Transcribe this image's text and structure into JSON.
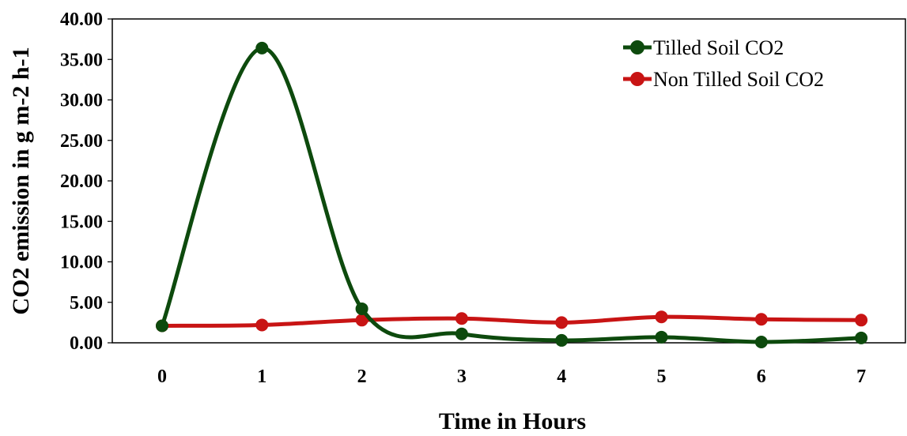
{
  "chart_data": {
    "type": "line",
    "title": "",
    "xlabel": "Time in Hours",
    "ylabel": "CO2 emission in g m-2 h-1",
    "categories": [
      "0",
      "1",
      "2",
      "3",
      "4",
      "5",
      "6",
      "7"
    ],
    "ylim": [
      0,
      40
    ],
    "yticks": [
      "0.00",
      "5.00",
      "10.00",
      "15.00",
      "20.00",
      "25.00",
      "30.00",
      "35.00",
      "40.00"
    ],
    "smooth": true,
    "grid": false,
    "legend_position": "top-right",
    "series": [
      {
        "name": "Tilled Soil CO2",
        "color": "#0d4a0d",
        "values": [
          2.1,
          36.4,
          4.2,
          1.1,
          0.3,
          0.7,
          0.1,
          0.6
        ]
      },
      {
        "name": "Non Tilled Soil CO2",
        "color": "#c81414",
        "values": [
          2.1,
          2.2,
          2.8,
          3.0,
          2.5,
          3.2,
          2.9,
          2.8
        ]
      }
    ]
  }
}
